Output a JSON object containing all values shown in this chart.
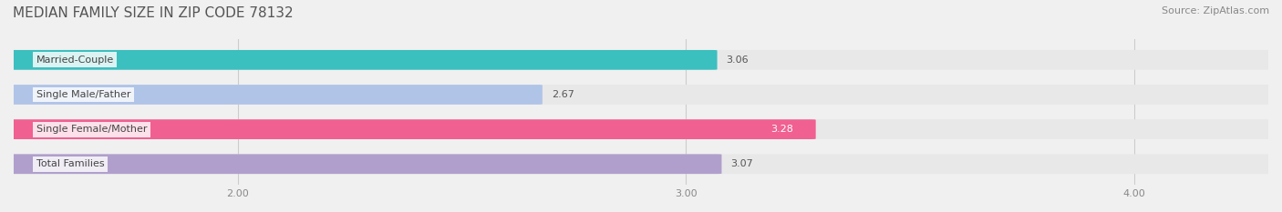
{
  "title": "MEDIAN FAMILY SIZE IN ZIP CODE 78132",
  "source": "Source: ZipAtlas.com",
  "categories": [
    "Married-Couple",
    "Single Male/Father",
    "Single Female/Mother",
    "Total Families"
  ],
  "values": [
    3.06,
    2.67,
    3.28,
    3.07
  ],
  "bar_colors": [
    "#3bbfbf",
    "#b0c4e8",
    "#f06090",
    "#b09fcc"
  ],
  "label_colors": [
    "#444444",
    "#444444",
    "#ffffff",
    "#444444"
  ],
  "value_outside": [
    true,
    true,
    false,
    true
  ],
  "xlim": [
    1.5,
    4.3
  ],
  "xticks": [
    2.0,
    3.0,
    4.0
  ],
  "xtick_labels": [
    "2.00",
    "3.00",
    "4.00"
  ],
  "bar_height": 0.55,
  "background_color": "#f0f0f0",
  "bar_bg_color": "#e8e8e8",
  "title_fontsize": 11,
  "source_fontsize": 8,
  "label_fontsize": 8,
  "value_fontsize": 8
}
